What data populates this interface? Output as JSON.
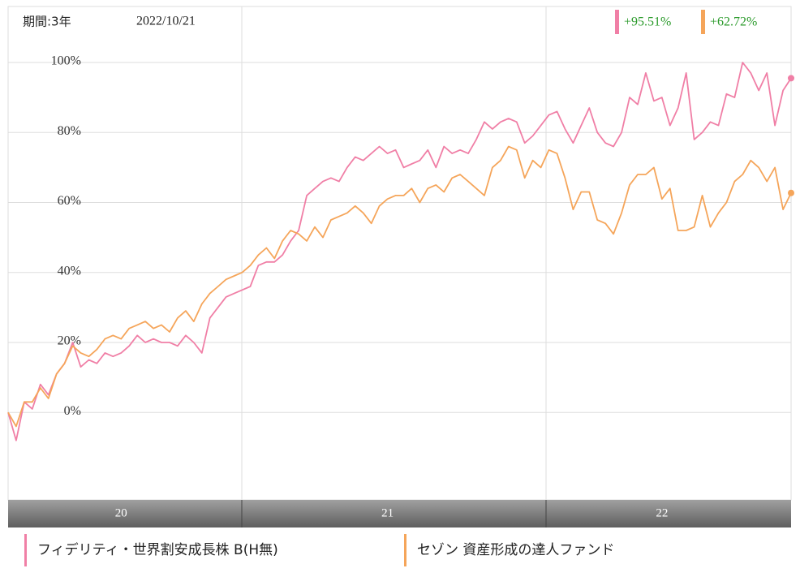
{
  "chart_data": {
    "type": "line",
    "period": "期間:3年",
    "date": "2022/10/21",
    "categories": [
      null,
      null,
      null,
      null,
      null,
      null,
      null,
      null,
      null,
      null,
      null,
      null,
      null,
      null,
      "20",
      null,
      null,
      null,
      null,
      null,
      null,
      null,
      null,
      null,
      null,
      null,
      null,
      null,
      null,
      null,
      null,
      null,
      null,
      null,
      null,
      null,
      null,
      null,
      null,
      null,
      null,
      null,
      null,
      null,
      null,
      null,
      null,
      "21",
      null,
      null,
      null,
      null,
      null,
      null,
      null,
      null,
      null,
      null,
      null,
      null,
      null,
      null,
      null,
      null,
      null,
      null,
      null,
      null,
      null,
      null,
      null,
      null,
      null,
      null,
      null,
      null,
      null,
      null,
      null,
      null,
      null,
      "22",
      null,
      null,
      null,
      null,
      null,
      null,
      null,
      null,
      null,
      null,
      null,
      null,
      null,
      null,
      null,
      null
    ],
    "ylim": [
      -25,
      116
    ],
    "yticks": [
      {
        "value": 0,
        "label": "0%"
      },
      {
        "value": 20,
        "label": "20%"
      },
      {
        "value": 40,
        "label": "40%"
      },
      {
        "value": 60,
        "label": "60%"
      },
      {
        "value": 80,
        "label": "80%"
      },
      {
        "value": 100,
        "label": "100%"
      }
    ],
    "grid": true,
    "series": [
      {
        "name": "フィデリティ・世界割安成長株 B(H無)",
        "color": "#f07fa6",
        "end_label": "+95.51%",
        "values": [
          0,
          -8,
          3,
          1,
          8,
          5,
          11,
          14,
          20,
          13,
          15,
          14,
          17,
          16,
          17,
          19,
          22,
          20,
          21,
          20,
          20,
          19,
          22,
          20,
          17,
          27,
          30,
          33,
          34,
          35,
          36,
          42,
          43,
          43,
          45,
          49,
          52,
          62,
          64,
          66,
          67,
          66,
          70,
          73,
          72,
          74,
          76,
          74,
          75,
          70,
          71,
          72,
          75,
          70,
          76,
          74,
          75,
          74,
          78,
          83,
          81,
          83,
          84,
          83,
          77,
          79,
          82,
          85,
          86,
          81,
          77,
          82,
          87,
          80,
          77,
          76,
          80,
          90,
          88,
          97,
          89,
          90,
          82,
          87,
          97,
          78,
          80,
          83,
          82,
          91,
          90,
          100,
          97,
          92,
          97,
          82,
          92,
          95.51
        ]
      },
      {
        "name": "セゾン 資産形成の達人ファンド",
        "color": "#f5a55a",
        "end_label": "+62.72%",
        "values": [
          0,
          -4,
          3,
          3,
          7,
          4,
          11,
          14,
          19,
          17,
          16,
          18,
          21,
          22,
          21,
          24,
          25,
          26,
          24,
          25,
          23,
          27,
          29,
          26,
          31,
          34,
          36,
          38,
          39,
          40,
          42,
          45,
          47,
          44,
          49,
          52,
          51,
          49,
          53,
          50,
          55,
          56,
          57,
          59,
          57,
          54,
          59,
          61,
          62,
          62,
          64,
          60,
          64,
          65,
          63,
          67,
          68,
          66,
          64,
          62,
          70,
          72,
          76,
          75,
          67,
          72,
          70,
          75,
          74,
          67,
          58,
          63,
          63,
          55,
          54,
          51,
          57,
          65,
          68,
          68,
          70,
          61,
          64,
          52,
          52,
          53,
          62,
          53,
          57,
          60,
          66,
          68,
          72,
          70,
          66,
          70,
          58,
          62.72
        ]
      }
    ]
  }
}
